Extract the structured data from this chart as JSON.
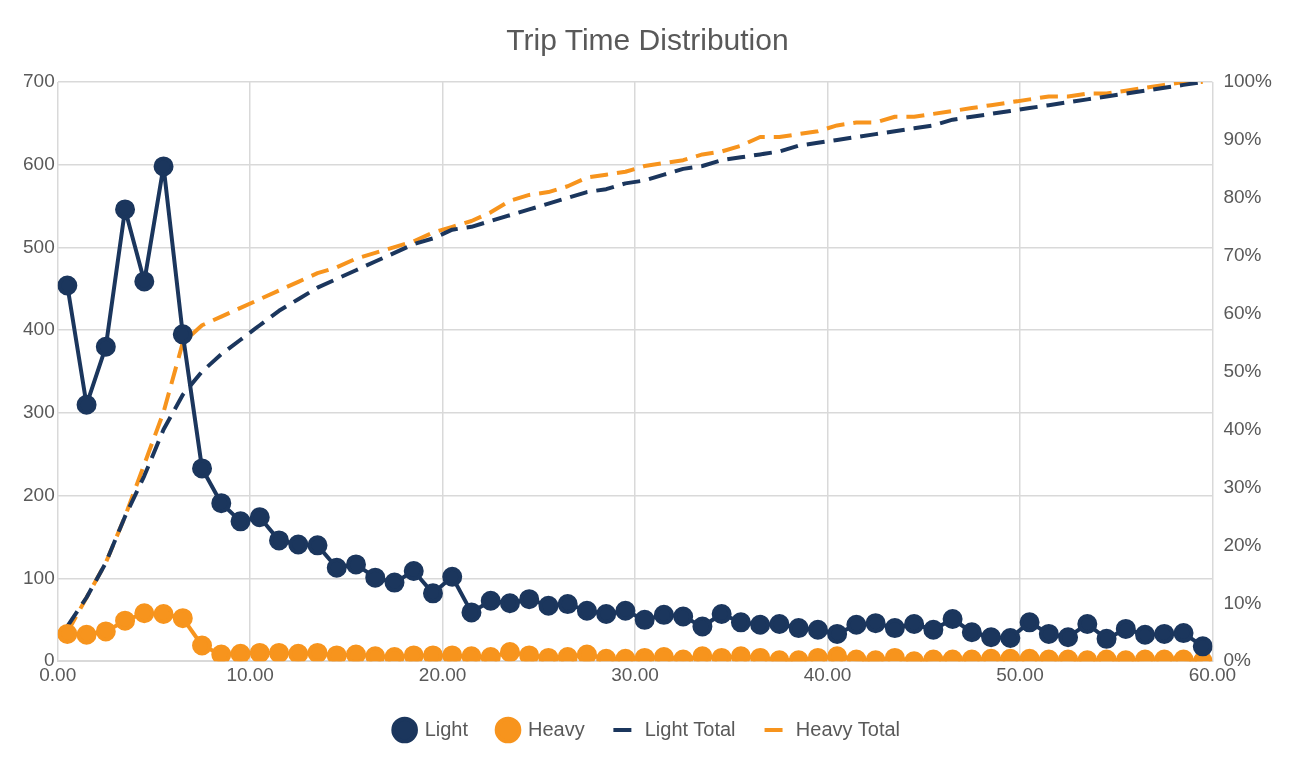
{
  "chart_data": {
    "type": "line",
    "title": "Trip Time Distribution",
    "x": [
      0.5,
      1.5,
      2.5,
      3.5,
      4.5,
      5.5,
      6.5,
      7.5,
      8.5,
      9.5,
      10.5,
      11.5,
      12.5,
      13.5,
      14.5,
      15.5,
      16.5,
      17.5,
      18.5,
      19.5,
      20.5,
      21.5,
      22.5,
      23.5,
      24.5,
      25.5,
      26.5,
      27.5,
      28.5,
      29.5,
      30.5,
      31.5,
      32.5,
      33.5,
      34.5,
      35.5,
      36.5,
      37.5,
      38.5,
      39.5,
      40.5,
      41.5,
      42.5,
      43.5,
      44.5,
      45.5,
      46.5,
      47.5,
      48.5,
      49.5,
      50.5,
      51.5,
      52.5,
      53.5,
      54.5,
      55.5,
      56.5,
      57.5,
      58.5,
      59.5
    ],
    "series": [
      {
        "name": "Light",
        "color": "#1b365d",
        "marker": "circle",
        "line_style": "solid",
        "values": [
          454,
          310,
          380,
          546,
          459,
          598,
          395,
          233,
          191,
          169,
          174,
          146,
          141,
          140,
          113,
          117,
          101,
          95,
          109,
          82,
          102,
          59,
          73,
          70,
          75,
          67,
          69,
          61,
          57,
          61,
          50,
          56,
          54,
          42,
          57,
          47,
          44,
          45,
          40,
          38,
          33,
          44,
          46,
          40,
          45,
          38,
          51,
          35,
          29,
          28,
          47,
          33,
          29,
          45,
          27,
          39,
          32,
          33,
          34,
          18
        ]
      },
      {
        "name": "Heavy",
        "color": "#f7941d",
        "marker": "circle",
        "line_style": "solid",
        "values": [
          33,
          32,
          36,
          49,
          58,
          57,
          52,
          19,
          8,
          9,
          10,
          10,
          9,
          10,
          7,
          8,
          6,
          5,
          7,
          7,
          7,
          6,
          5,
          11,
          7,
          4,
          5,
          8,
          3,
          3,
          4,
          5,
          2,
          6,
          4,
          6,
          4,
          1,
          1,
          4,
          6,
          2,
          1,
          4,
          0,
          2,
          2,
          2,
          3,
          3,
          3,
          2,
          2,
          1,
          2,
          1,
          2,
          2,
          2,
          0
        ]
      },
      {
        "name": "Light Total",
        "color": "#1b365d",
        "marker": "none",
        "line_style": "dashed",
        "axis": "y2",
        "values": [
          6,
          11,
          17,
          25,
          32,
          40,
          46,
          50,
          53,
          55.5,
          58,
          60.5,
          62.5,
          64.5,
          66,
          67.5,
          69,
          70.5,
          72,
          73,
          74.5,
          75,
          76,
          77,
          78,
          79,
          80,
          81,
          81.5,
          82.5,
          83,
          84,
          85,
          85.5,
          86.5,
          87,
          87.5,
          88,
          89,
          89.5,
          90,
          90.5,
          91,
          91.5,
          92,
          92.5,
          93.5,
          94,
          94.5,
          95,
          95.5,
          96,
          96.5,
          97,
          97.5,
          98,
          98.5,
          99,
          99.5,
          100
        ]
      },
      {
        "name": "Heavy Total",
        "color": "#f7941d",
        "marker": "none",
        "line_style": "dashed",
        "axis": "y2",
        "values": [
          5,
          11,
          17,
          25,
          34,
          43,
          55,
          58,
          59.5,
          61,
          62.5,
          64,
          65.5,
          67,
          68,
          69.5,
          70.5,
          71.5,
          72.5,
          74,
          75,
          76,
          77.5,
          79.5,
          80.5,
          81,
          82,
          83.5,
          84,
          84.5,
          85.5,
          86,
          86.5,
          87.5,
          88,
          89,
          90.5,
          90.5,
          91,
          91.5,
          92.5,
          93,
          93,
          94,
          94,
          94.5,
          95,
          95.5,
          96,
          96.5,
          97,
          97.5,
          97.5,
          98,
          98,
          98.5,
          99,
          99.5,
          100,
          100
        ]
      }
    ],
    "xlim": [
      0,
      60
    ],
    "xticks": [
      {
        "value": 0,
        "label": "0.00"
      },
      {
        "value": 10,
        "label": "10.00"
      },
      {
        "value": 20,
        "label": "20.00"
      },
      {
        "value": 30,
        "label": "30.00"
      },
      {
        "value": 40,
        "label": "40.00"
      },
      {
        "value": 50,
        "label": "50.00"
      },
      {
        "value": 60,
        "label": "60.00"
      }
    ],
    "ylim": [
      0,
      700
    ],
    "yticks": [
      0,
      100,
      200,
      300,
      400,
      500,
      600,
      700
    ],
    "y2lim": [
      0,
      100
    ],
    "y2ticks": [
      {
        "value": 0,
        "label": "0%"
      },
      {
        "value": 10,
        "label": "10%"
      },
      {
        "value": 20,
        "label": "20%"
      },
      {
        "value": 30,
        "label": "30%"
      },
      {
        "value": 40,
        "label": "40%"
      },
      {
        "value": 50,
        "label": "50%"
      },
      {
        "value": 60,
        "label": "60%"
      },
      {
        "value": 70,
        "label": "70%"
      },
      {
        "value": 80,
        "label": "80%"
      },
      {
        "value": 90,
        "label": "90%"
      },
      {
        "value": 100,
        "label": "100%"
      }
    ],
    "grid": true,
    "legend": "bottom"
  }
}
